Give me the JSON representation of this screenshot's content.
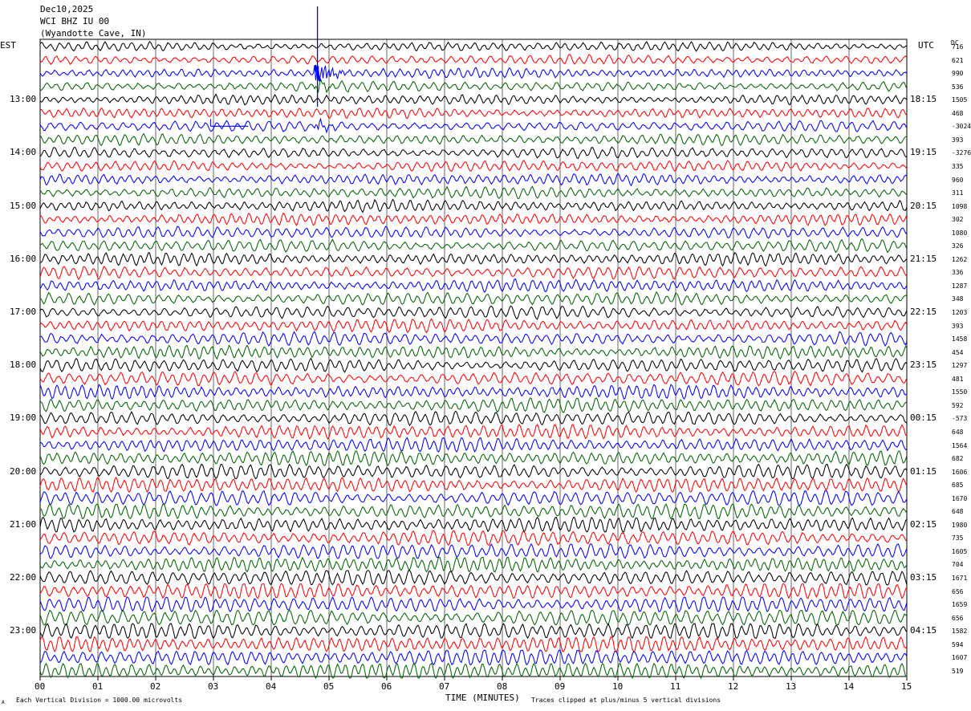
{
  "header": {
    "date": "Dec10,2025",
    "station": "WCI BHZ IU 00",
    "location": "(Wyandotte Cave, IN)"
  },
  "left_zone": "EST",
  "right_zone": "UTC",
  "dc_label": "DC",
  "footer": {
    "scale_note": "Each Vertical Division = 1000.00 microvolts",
    "clip_note": "Traces clipped at plus/minus 5 vertical divisions",
    "corner_mark": "A"
  },
  "chart_data": {
    "type": "line",
    "title": "",
    "xlabel": "TIME (MINUTES)",
    "ylabel": "",
    "xlim": [
      0,
      15
    ],
    "x_ticks": [
      "00",
      "01",
      "02",
      "03",
      "04",
      "05",
      "06",
      "07",
      "08",
      "09",
      "10",
      "11",
      "12",
      "13",
      "14",
      "15"
    ],
    "trace_count": 48,
    "traces_per_hour": 4,
    "trace_colors": [
      "#000000",
      "#ff0000",
      "#0000ff",
      "#006400"
    ],
    "left_hour_labels": [
      "13:00",
      "14:00",
      "15:00",
      "16:00",
      "17:00",
      "18:00",
      "19:00",
      "20:00",
      "21:00",
      "22:00",
      "23:00"
    ],
    "right_hour_labels": [
      "18:15",
      "19:15",
      "20:15",
      "21:15",
      "22:15",
      "23:15",
      "00:15",
      "01:15",
      "02:15",
      "03:15",
      "04:15"
    ],
    "dc_offsets": [
      "716",
      "621",
      "990",
      "536",
      "1505",
      "468",
      "-3024",
      "393",
      "-3276",
      "335",
      "960",
      "311",
      "1098",
      "302",
      "1080",
      "326",
      "1262",
      "336",
      "1287",
      "348",
      "1203",
      "393",
      "1458",
      "454",
      "1297",
      "481",
      "1550",
      "592",
      "-573",
      "648",
      "1564",
      "682",
      "1606",
      "685",
      "1670",
      "648",
      "1980",
      "735",
      "1605",
      "704",
      "1671",
      "656",
      "1659",
      "656",
      "1582",
      "594",
      "1607",
      "519"
    ],
    "event": {
      "trace_index": 2,
      "minute": 4.8,
      "note": "large clipped arrival"
    }
  }
}
